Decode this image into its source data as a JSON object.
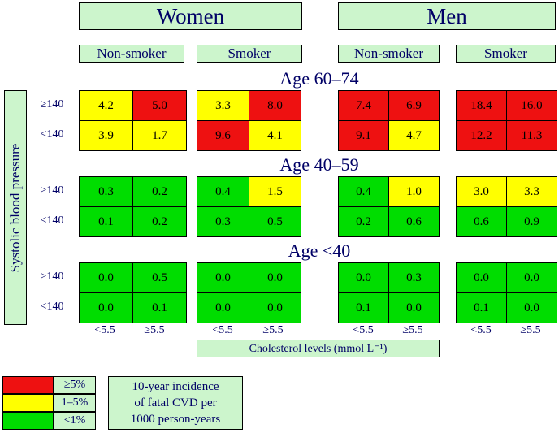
{
  "headers": {
    "women": "Women",
    "men": "Men",
    "nonsmoker": "Non-smoker",
    "smoker": "Smoker"
  },
  "side_label": "Systolic blood pressure",
  "bp_labels": [
    "≥140",
    "<140"
  ],
  "chol_labels": [
    "<5.5",
    "≥5.5"
  ],
  "chol_axis_label": "Cholesterol levels (mmol L⁻¹)",
  "legend": {
    "items": [
      {
        "label": "≥5%",
        "color": "#ee1111"
      },
      {
        "label": "1–5%",
        "color": "#ffff00"
      },
      {
        "label": "<1%",
        "color": "#00dd00"
      }
    ],
    "note_lines": [
      "10-year incidence",
      "of fatal CVD per",
      "1000 person-years"
    ]
  },
  "colors": {
    "red": "#ee1111",
    "yellow": "#ffff00",
    "green": "#00dd00",
    "panel": "#ccf5cc"
  },
  "chart_data": {
    "type": "heatmap",
    "group_order": [
      "Women Non-smoker",
      "Women Smoker",
      "Men Non-smoker",
      "Men Smoker"
    ],
    "rows": [
      "≥140",
      "<140"
    ],
    "cols": [
      "<5.5",
      "≥5.5"
    ],
    "age_bands": [
      {
        "label": "Age 60–74",
        "groups": [
          {
            "values": [
              [
                "4.2",
                "5.0"
              ],
              [
                "3.9",
                "1.7"
              ]
            ],
            "levels": [
              [
                "yellow",
                "red"
              ],
              [
                "yellow",
                "yellow"
              ]
            ]
          },
          {
            "values": [
              [
                "3.3",
                "8.0"
              ],
              [
                "9.6",
                "4.1"
              ]
            ],
            "levels": [
              [
                "yellow",
                "red"
              ],
              [
                "red",
                "yellow"
              ]
            ]
          },
          {
            "values": [
              [
                "7.4",
                "6.9"
              ],
              [
                "9.1",
                "4.7"
              ]
            ],
            "levels": [
              [
                "red",
                "red"
              ],
              [
                "red",
                "yellow"
              ]
            ]
          },
          {
            "values": [
              [
                "18.4",
                "16.0"
              ],
              [
                "12.2",
                "11.3"
              ]
            ],
            "levels": [
              [
                "red",
                "red"
              ],
              [
                "red",
                "red"
              ]
            ]
          }
        ]
      },
      {
        "label": "Age 40–59",
        "groups": [
          {
            "values": [
              [
                "0.3",
                "0.2"
              ],
              [
                "0.1",
                "0.2"
              ]
            ],
            "levels": [
              [
                "green",
                "green"
              ],
              [
                "green",
                "green"
              ]
            ]
          },
          {
            "values": [
              [
                "0.4",
                "1.5"
              ],
              [
                "0.3",
                "0.5"
              ]
            ],
            "levels": [
              [
                "green",
                "yellow"
              ],
              [
                "green",
                "green"
              ]
            ]
          },
          {
            "values": [
              [
                "0.4",
                "1.0"
              ],
              [
                "0.2",
                "0.6"
              ]
            ],
            "levels": [
              [
                "green",
                "yellow"
              ],
              [
                "green",
                "green"
              ]
            ]
          },
          {
            "values": [
              [
                "3.0",
                "3.3"
              ],
              [
                "0.6",
                "0.9"
              ]
            ],
            "levels": [
              [
                "yellow",
                "yellow"
              ],
              [
                "green",
                "green"
              ]
            ]
          }
        ]
      },
      {
        "label": "Age <40",
        "groups": [
          {
            "values": [
              [
                "0.0",
                "0.5"
              ],
              [
                "0.0",
                "0.1"
              ]
            ],
            "levels": [
              [
                "green",
                "green"
              ],
              [
                "green",
                "green"
              ]
            ]
          },
          {
            "values": [
              [
                "0.0",
                "0.0"
              ],
              [
                "0.0",
                "0.0"
              ]
            ],
            "levels": [
              [
                "green",
                "green"
              ],
              [
                "green",
                "green"
              ]
            ]
          },
          {
            "values": [
              [
                "0.0",
                "0.3"
              ],
              [
                "0.1",
                "0.0"
              ]
            ],
            "levels": [
              [
                "green",
                "green"
              ],
              [
                "green",
                "green"
              ]
            ]
          },
          {
            "values": [
              [
                "0.0",
                "0.0"
              ],
              [
                "0.1",
                "0.0"
              ]
            ],
            "levels": [
              [
                "green",
                "green"
              ],
              [
                "green",
                "green"
              ]
            ]
          }
        ]
      }
    ]
  }
}
